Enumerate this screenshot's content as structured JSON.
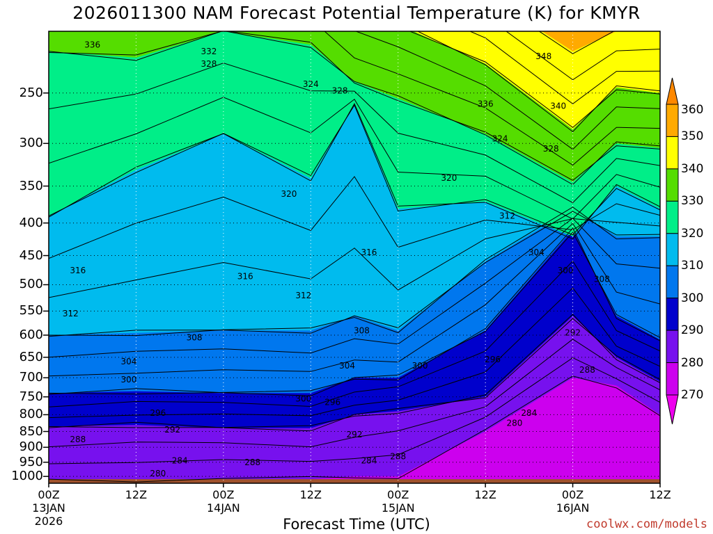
{
  "chart_data": {
    "type": "heatmap",
    "title": "2026011300 NAM Forecast Potential Temperature (K) for KMYR",
    "xlabel": "Forecast Time (UTC)",
    "credit": "coolwx.com/models",
    "x_ticks": [
      {
        "hour": 0,
        "line1": "00Z",
        "line2": "13JAN",
        "line3": "2026"
      },
      {
        "hour": 12,
        "line1": "12Z",
        "line2": "",
        "line3": ""
      },
      {
        "hour": 24,
        "line1": "00Z",
        "line2": "14JAN",
        "line3": ""
      },
      {
        "hour": 36,
        "line1": "12Z",
        "line2": "",
        "line3": ""
      },
      {
        "hour": 48,
        "line1": "00Z",
        "line2": "15JAN",
        "line3": ""
      },
      {
        "hour": 60,
        "line1": "12Z",
        "line2": "",
        "line3": ""
      },
      {
        "hour": 72,
        "line1": "00Z",
        "line2": "16JAN",
        "line3": ""
      },
      {
        "hour": 84,
        "line1": "12Z",
        "line2": "",
        "line3": ""
      }
    ],
    "x_range_hours": [
      0,
      84
    ],
    "y_axis": {
      "units": "hPa",
      "ticks": [
        "250",
        "300",
        "350",
        "400",
        "450",
        "500",
        "550",
        "600",
        "650",
        "700",
        "750",
        "800",
        "850",
        "900",
        "950",
        "1000"
      ],
      "range": [
        200,
        1025
      ]
    },
    "colorbar": {
      "ticks": [
        "360",
        "350",
        "340",
        "330",
        "320",
        "310",
        "300",
        "290",
        "280",
        "270"
      ],
      "bands": [
        {
          "min": 350,
          "max": 360,
          "color": "#ffaa00"
        },
        {
          "min": 340,
          "max": 350,
          "color": "#ffff00"
        },
        {
          "min": 330,
          "max": 340,
          "color": "#55dd00"
        },
        {
          "min": 320,
          "max": 330,
          "color": "#00ee88"
        },
        {
          "min": 310,
          "max": 320,
          "color": "#00bbee"
        },
        {
          "min": 300,
          "max": 310,
          "color": "#0077ee"
        },
        {
          "min": 290,
          "max": 300,
          "color": "#0000cc"
        },
        {
          "min": 280,
          "max": 290,
          "color": "#7711ee"
        },
        {
          "min": 270,
          "max": 280,
          "color": "#cc00ee"
        }
      ],
      "top_arrow_color": "#ff8800",
      "bottom_arrow_color": "#ee00ee"
    },
    "ground_color": "#a0522d",
    "band_boundaries_hPa": {
      "hours": [
        0,
        12,
        24,
        36,
        42,
        48,
        60,
        72,
        78,
        84
      ],
      "isentropes": [
        {
          "theta": 350,
          "p": [
            150,
            150,
            150,
            150,
            150,
            150,
            175,
            215,
            200,
            200
          ]
        },
        {
          "theta": 340,
          "p": [
            150,
            150,
            150,
            160,
            180,
            195,
            225,
            285,
            245,
            250
          ]
        },
        {
          "theta": 330,
          "p": [
            215,
            220,
            200,
            210,
            240,
            255,
            290,
            345,
            300,
            305
          ]
        },
        {
          "theta": 320,
          "p": [
            390,
            330,
            290,
            340,
            260,
            380,
            370,
            420,
            350,
            380
          ]
        },
        {
          "theta": 310,
          "p": [
            600,
            595,
            590,
            590,
            560,
            590,
            460,
            380,
            420,
            420
          ]
        },
        {
          "theta": 300,
          "p": [
            740,
            735,
            740,
            740,
            700,
            700,
            590,
            410,
            560,
            610
          ]
        },
        {
          "theta": 290,
          "p": [
            835,
            830,
            840,
            840,
            800,
            790,
            750,
            560,
            650,
            710
          ]
        },
        {
          "theta": 280,
          "p": [
            1010,
            1010,
            1010,
            1010,
            1000,
            1000,
            850,
            700,
            720,
            800
          ]
        }
      ]
    },
    "contour_labels": [
      {
        "text": "336",
        "hour": 6,
        "p": 210
      },
      {
        "text": "332",
        "hour": 22,
        "p": 215
      },
      {
        "text": "328",
        "hour": 22,
        "p": 225
      },
      {
        "text": "348",
        "hour": 68,
        "p": 219
      },
      {
        "text": "324",
        "hour": 36,
        "p": 242
      },
      {
        "text": "328",
        "hour": 40,
        "p": 248
      },
      {
        "text": "336",
        "hour": 60,
        "p": 260
      },
      {
        "text": "340",
        "hour": 70,
        "p": 262
      },
      {
        "text": "324",
        "hour": 62,
        "p": 295
      },
      {
        "text": "328",
        "hour": 69,
        "p": 306
      },
      {
        "text": "320",
        "hour": 33,
        "p": 360
      },
      {
        "text": "320",
        "hour": 55,
        "p": 340
      },
      {
        "text": "312",
        "hour": 63,
        "p": 390
      },
      {
        "text": "304",
        "hour": 67,
        "p": 445
      },
      {
        "text": "300",
        "hour": 71,
        "p": 475
      },
      {
        "text": "308",
        "hour": 76,
        "p": 490
      },
      {
        "text": "316",
        "hour": 4,
        "p": 475
      },
      {
        "text": "316",
        "hour": 27,
        "p": 485
      },
      {
        "text": "316",
        "hour": 44,
        "p": 445
      },
      {
        "text": "312",
        "hour": 35,
        "p": 520
      },
      {
        "text": "312",
        "hour": 3,
        "p": 555
      },
      {
        "text": "308",
        "hour": 20,
        "p": 605
      },
      {
        "text": "308",
        "hour": 43,
        "p": 590
      },
      {
        "text": "292",
        "hour": 72,
        "p": 595
      },
      {
        "text": "304",
        "hour": 11,
        "p": 660
      },
      {
        "text": "304",
        "hour": 41,
        "p": 670
      },
      {
        "text": "300",
        "hour": 51,
        "p": 670
      },
      {
        "text": "296",
        "hour": 61,
        "p": 655
      },
      {
        "text": "288",
        "hour": 74,
        "p": 680
      },
      {
        "text": "300",
        "hour": 11,
        "p": 705
      },
      {
        "text": "300",
        "hour": 35,
        "p": 755
      },
      {
        "text": "296",
        "hour": 39,
        "p": 765
      },
      {
        "text": "296",
        "hour": 15,
        "p": 795
      },
      {
        "text": "284",
        "hour": 66,
        "p": 795
      },
      {
        "text": "280",
        "hour": 64,
        "p": 825
      },
      {
        "text": "292",
        "hour": 17,
        "p": 845
      },
      {
        "text": "292",
        "hour": 42,
        "p": 860
      },
      {
        "text": "288",
        "hour": 4,
        "p": 875
      },
      {
        "text": "288",
        "hour": 48,
        "p": 930
      },
      {
        "text": "284",
        "hour": 18,
        "p": 945
      },
      {
        "text": "288",
        "hour": 28,
        "p": 950
      },
      {
        "text": "284",
        "hour": 44,
        "p": 945
      },
      {
        "text": "280",
        "hour": 15,
        "p": 990
      }
    ]
  }
}
